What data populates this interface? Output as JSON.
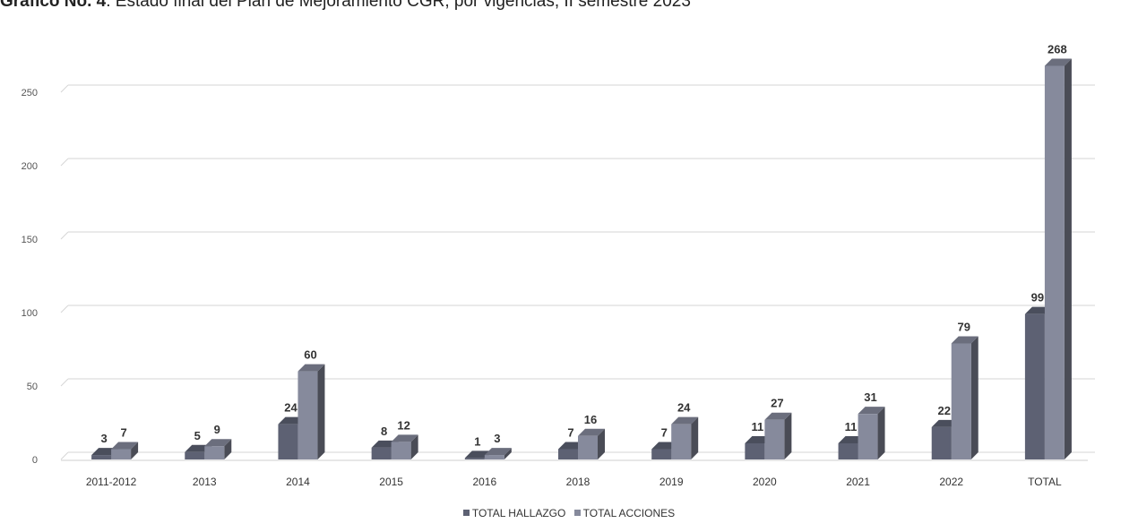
{
  "title": {
    "bold": "Grafico No. 4",
    "rest": ". Estado final del Plan de Mejoramiento CGR, por vigencias, II semestre 2023"
  },
  "chart_data": {
    "type": "bar",
    "categories": [
      "2011-2012",
      "2013",
      "2014",
      "2015",
      "2016",
      "2018",
      "2019",
      "2020",
      "2021",
      "2022",
      "TOTAL"
    ],
    "series": [
      {
        "name": "TOTAL HALLAZGO",
        "values": [
          3,
          5,
          24,
          8,
          1,
          7,
          7,
          11,
          11,
          22,
          99
        ],
        "color": "#5d6173"
      },
      {
        "name": "TOTAL ACCIONES",
        "values": [
          7,
          9,
          60,
          12,
          3,
          16,
          24,
          27,
          31,
          79,
          268
        ],
        "color": "#868a9c"
      }
    ],
    "y_ticks": [
      "0",
      "50",
      "100",
      "150",
      "200",
      "250"
    ],
    "ylim": [
      0,
      300
    ],
    "grid": true,
    "style": "3d-column",
    "legend_position": "bottom-center"
  }
}
